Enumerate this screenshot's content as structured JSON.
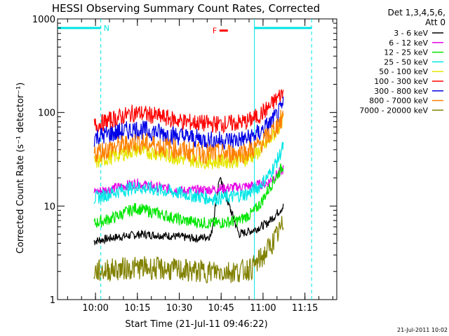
{
  "chart_data": {
    "type": "line",
    "title": "HESSI Observing Summary Count Rates, Corrected",
    "xlabel": "Start Time (21-Jul-11 09:46:22)",
    "ylabel": "Corrected Count Rate (s⁻¹ detector⁻¹)",
    "yscale": "log",
    "ylim": [
      1,
      1000
    ],
    "xlim_minutes_from_start": [
      0,
      100
    ],
    "y_ticks": [
      {
        "value": 1,
        "label": "1"
      },
      {
        "value": 10,
        "label": "10"
      },
      {
        "value": 100,
        "label": "100"
      },
      {
        "value": 1000,
        "label": "1000"
      }
    ],
    "x_ticks": [
      {
        "minute": 13.6,
        "label": "10:00"
      },
      {
        "minute": 28.6,
        "label": "10:15"
      },
      {
        "minute": 43.6,
        "label": "10:30"
      },
      {
        "minute": 58.6,
        "label": "10:45"
      },
      {
        "minute": 73.6,
        "label": "11:00"
      },
      {
        "minute": 88.6,
        "label": "11:15"
      }
    ],
    "legend": {
      "placement": "right",
      "header": [
        "Det 1,3,4,5,6,",
        "Att 0"
      ]
    },
    "series": [
      {
        "name": "3 - 6 keV",
        "color": "#000000",
        "x": [
          13,
          20,
          30,
          40,
          50,
          55,
          58,
          65,
          70,
          75,
          78,
          81
        ],
        "y": [
          4.2,
          4.6,
          5.0,
          4.8,
          4.5,
          4.8,
          20,
          5,
          5.5,
          6.5,
          8,
          10
        ]
      },
      {
        "name": "6 - 12 keV",
        "color": "#e600e6",
        "x": [
          13,
          20,
          28,
          35,
          45,
          55,
          60,
          65,
          70,
          75,
          78,
          81
        ],
        "y": [
          14,
          15.5,
          17.5,
          16,
          14.5,
          15,
          15.5,
          16,
          16.5,
          17.5,
          21,
          25
        ]
      },
      {
        "name": "12 - 25 keV",
        "color": "#00e600",
        "x": [
          13,
          20,
          28,
          35,
          45,
          55,
          60,
          65,
          70,
          73,
          76,
          79,
          81
        ],
        "y": [
          6.5,
          7.5,
          9.5,
          8.5,
          7,
          6.5,
          6.7,
          7,
          8.5,
          11,
          16,
          22,
          28
        ]
      },
      {
        "name": "25 - 50 keV",
        "color": "#00e6e6",
        "x": [
          13,
          20,
          28,
          35,
          45,
          55,
          62,
          68,
          72,
          76,
          79,
          81
        ],
        "y": [
          12,
          14,
          16,
          15,
          13.5,
          12,
          12.5,
          13.5,
          16,
          22,
          32,
          45
        ]
      },
      {
        "name": "50 - 100 keV",
        "color": "#e6e600",
        "x": [
          13,
          20,
          28,
          35,
          45,
          55,
          62,
          68,
          72,
          76,
          79,
          81
        ],
        "y": [
          29,
          34,
          40,
          37,
          32,
          30,
          30.5,
          32,
          38,
          50,
          68,
          88
        ]
      },
      {
        "name": "100 - 300 keV",
        "color": "#ff0000",
        "x": [
          13,
          20,
          28,
          35,
          45,
          55,
          62,
          68,
          72,
          76,
          79,
          81
        ],
        "y": [
          72,
          85,
          100,
          92,
          80,
          75,
          76,
          80,
          92,
          115,
          145,
          165
        ]
      },
      {
        "name": "300 - 800 keV",
        "color": "#0000e6",
        "x": [
          13,
          20,
          28,
          35,
          45,
          55,
          62,
          68,
          72,
          76,
          79,
          81
        ],
        "y": [
          54,
          60,
          66,
          62,
          55,
          50,
          50.5,
          52,
          60,
          75,
          95,
          120
        ]
      },
      {
        "name": "800 - 7000 keV",
        "color": "#ff8000",
        "x": [
          13,
          20,
          28,
          35,
          45,
          55,
          62,
          68,
          72,
          76,
          79,
          81
        ],
        "y": [
          37,
          42,
          48,
          45,
          39,
          36,
          36.5,
          38,
          44,
          58,
          75,
          92
        ]
      },
      {
        "name": "7000 - 20000 keV",
        "color": "#808000",
        "x": [
          13,
          20,
          30,
          40,
          50,
          60,
          65,
          70,
          74,
          78,
          81
        ],
        "y": [
          2,
          2.1,
          2.2,
          2.1,
          2,
          2,
          2,
          2.2,
          3,
          4.5,
          6.5
        ]
      }
    ],
    "annotations": [
      {
        "label": "N",
        "color": "#00e6e6",
        "region_minutes": [
          0,
          15.5
        ],
        "level": 800
      },
      {
        "label": "F",
        "color": "#ff0000",
        "region_minutes": [
          58,
          61
        ],
        "level": 750
      },
      {
        "label": "",
        "color": "#00e6e6",
        "region_minutes": [
          70.5,
          91
        ],
        "level": 800
      }
    ],
    "timestamp": "21-Jul-2011 10:02"
  }
}
